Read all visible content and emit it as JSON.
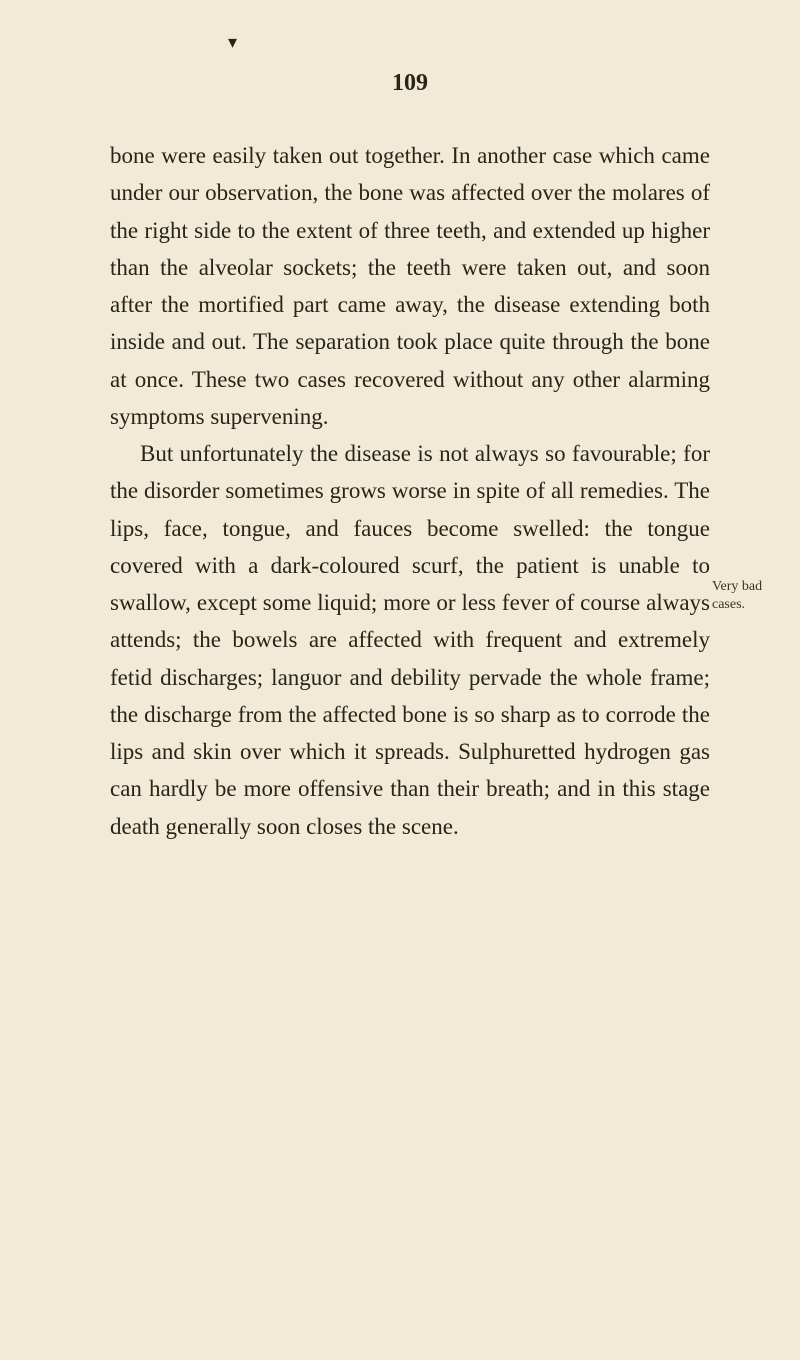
{
  "page": {
    "number": "109",
    "background_color": "#f0ead6",
    "text_color": "#2a2418",
    "body_fontsize": 23,
    "pagenum_fontsize": 24,
    "margin_fontsize": 14,
    "line_height": 1.62
  },
  "paragraphs": [
    {
      "text": "bone were easily taken out together. In an­other case which came under our observa­tion, the bone was affected over the molares of the right side to the extent of three teeth, and extended up higher than the alveolar sockets; the teeth were taken out, and soon after the mortified part came away, the disease extending both inside and out. The separa­tion took place quite through the bone at once. These two cases recovered without any other alarming symptoms supervening.",
      "indent": false
    },
    {
      "text": "But unfortunately the disease is not always so favourable; for the disorder sometimes grows worse in spite of all remedies. The lips, face, tongue, and fauces become swelled: the tongue covered with a dark-coloured scurf, the patient is unable to swallow, except some liquid; more or less fever of course always attends; the bowels are affected with frequent and extremely fetid discharges; languor and debility pervade the whole frame; the dis­charge from the affected bone is so sharp as to corrode the lips and skin over which it spreads. Sulphuretted hydrogen gas can hardly be more offensive than their breath; and in this stage death generally soon closes the scene.",
      "indent": true
    }
  ],
  "margin_notes": [
    {
      "text": "Very bad cases.",
      "position_class": "margin-note-1"
    }
  ],
  "decoration": {
    "dot": "▾"
  }
}
